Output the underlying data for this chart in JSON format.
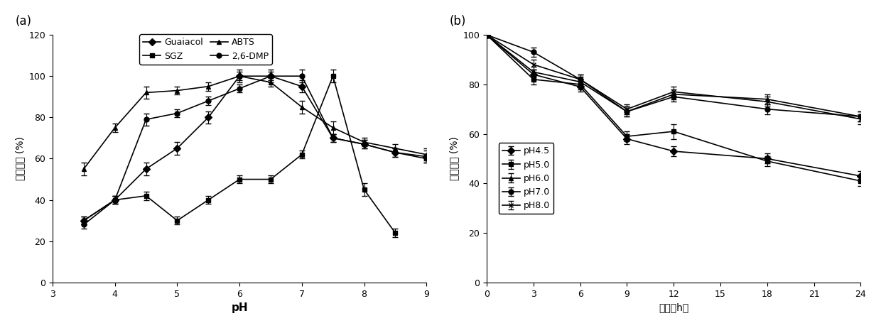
{
  "panel_a": {
    "xlabel": "pH",
    "ylabel": "相对活力（%）",
    "xlim": [
      3,
      9
    ],
    "ylim": [
      0,
      120
    ],
    "xticks": [
      3,
      4,
      5,
      6,
      7,
      8,
      9
    ],
    "yticks": [
      0,
      20,
      40,
      60,
      80,
      100,
      120
    ],
    "label": "(a)",
    "series": {
      "Guaiacol": {
        "x": [
          3.5,
          4.0,
          4.5,
          5.0,
          5.5,
          6.0,
          6.5,
          7.0,
          7.5,
          8.0,
          8.5,
          9.0
        ],
        "y": [
          30,
          40,
          55,
          65,
          80,
          100,
          100,
          95,
          70,
          67,
          63,
          61
        ],
        "yerr": [
          2,
          2,
          3,
          3,
          3,
          3,
          3,
          3,
          2,
          2,
          2,
          3
        ],
        "marker": "D",
        "linestyle": "-"
      },
      "SGZ": {
        "x": [
          3.5,
          4.0,
          4.5,
          5.0,
          5.5,
          6.0,
          6.5,
          7.0,
          7.5,
          8.0,
          8.5
        ],
        "y": [
          30,
          40,
          42,
          30,
          40,
          50,
          50,
          62,
          100,
          45,
          24
        ],
        "yerr": [
          2,
          2,
          2,
          2,
          2,
          2,
          2,
          2,
          3,
          3,
          2
        ],
        "marker": "s",
        "linestyle": "-"
      },
      "ABTS": {
        "x": [
          3.5,
          4.0,
          4.5,
          5.0,
          5.5,
          6.0,
          6.5,
          7.0,
          7.5,
          8.0,
          8.5,
          9.0
        ],
        "y": [
          55,
          75,
          92,
          93,
          95,
          100,
          97,
          85,
          75,
          68,
          65,
          62
        ],
        "yerr": [
          3,
          2,
          3,
          2,
          2,
          2,
          2,
          3,
          3,
          2,
          2,
          3
        ],
        "marker": "^",
        "linestyle": "-"
      },
      "2,6-DMP": {
        "x": [
          3.5,
          4.0,
          4.5,
          5.0,
          5.5,
          6.0,
          6.5,
          7.0,
          7.5,
          8.0,
          8.5,
          9.0
        ],
        "y": [
          28,
          40,
          79,
          82,
          88,
          94,
          100,
          100,
          70,
          67,
          63,
          60
        ],
        "yerr": [
          2,
          2,
          3,
          2,
          2,
          2,
          2,
          3,
          2,
          2,
          2,
          2
        ],
        "marker": "o",
        "linestyle": "-"
      }
    },
    "legend_order": [
      "Guaiacol",
      "SGZ",
      "ABTS",
      "2,6-DMP"
    ],
    "legend_ncol": 2
  },
  "panel_b": {
    "xlabel": "时间（h）",
    "ylabel": "相对活力（%）",
    "xlim": [
      0,
      24
    ],
    "ylim": [
      0,
      100
    ],
    "xticks": [
      0,
      3,
      6,
      9,
      12,
      15,
      18,
      21,
      24
    ],
    "yticks": [
      0,
      20,
      40,
      60,
      80,
      100
    ],
    "label": "(b)",
    "series": {
      "pH4.5": {
        "x": [
          0,
          3,
          6,
          9,
          12,
          18,
          24
        ],
        "y": [
          100,
          84,
          79,
          58,
          53,
          50,
          43
        ],
        "yerr": [
          1,
          2,
          2,
          2,
          2,
          2,
          2
        ],
        "marker": "D",
        "linestyle": "-"
      },
      "pH5.0": {
        "x": [
          0,
          3,
          6,
          9,
          12,
          18,
          24
        ],
        "y": [
          100,
          82,
          80,
          59,
          61,
          49,
          41
        ],
        "yerr": [
          1,
          2,
          2,
          2,
          3,
          2,
          2
        ],
        "marker": "s",
        "linestyle": "-"
      },
      "pH6.0": {
        "x": [
          0,
          3,
          6,
          9,
          12,
          18,
          24
        ],
        "y": [
          100,
          85,
          81,
          69,
          76,
          74,
          67
        ],
        "yerr": [
          1,
          2,
          2,
          2,
          2,
          2,
          2
        ],
        "marker": "^",
        "linestyle": "-"
      },
      "pH7.0": {
        "x": [
          0,
          3,
          6,
          9,
          12,
          18,
          24
        ],
        "y": [
          100,
          93,
          82,
          69,
          75,
          70,
          67
        ],
        "yerr": [
          1,
          2,
          2,
          2,
          2,
          2,
          2
        ],
        "marker": "o",
        "linestyle": "-"
      },
      "pH8.0": {
        "x": [
          0,
          3,
          6,
          9,
          12,
          18,
          24
        ],
        "y": [
          100,
          88,
          82,
          70,
          77,
          73,
          66
        ],
        "yerr": [
          1,
          2,
          2,
          2,
          2,
          2,
          2
        ],
        "marker": "x",
        "linestyle": "-"
      }
    },
    "legend_order": [
      "pH4.5",
      "pH5.0",
      "pH6.0",
      "pH7.0",
      "pH8.0"
    ]
  }
}
